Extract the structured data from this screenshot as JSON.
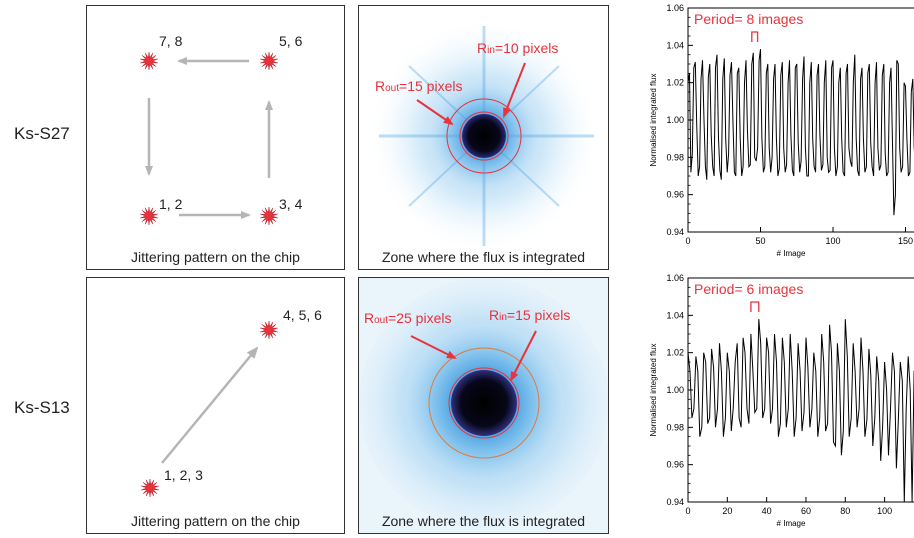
{
  "rows": [
    {
      "label": "Ks-S27",
      "jitter": {
        "caption": "Jittering pattern on the chip",
        "points": [
          "7, 8",
          "5, 6",
          "1, 2",
          "3, 4"
        ]
      },
      "zone": {
        "caption": "Zone where the flux is integrated",
        "rin": {
          "sub": "in",
          "text": "=10 pixels"
        },
        "rout": {
          "sub": "out",
          "text": "=15 pixels"
        }
      }
    },
    {
      "label": "Ks-S13",
      "jitter": {
        "caption": "Jittering pattern on the chip",
        "points": [
          "4, 5, 6",
          "1, 2, 3"
        ]
      },
      "zone": {
        "caption": "Zone where the flux is integrated",
        "rin": {
          "sub": "in",
          "text": "=15 pixels"
        },
        "rout": {
          "sub": "out",
          "text": "=25 pixels"
        }
      }
    }
  ],
  "chart_data": [
    {
      "type": "line",
      "ylabel": "Normalised integrated flux",
      "xlabel": "# Image",
      "annotation": "Period= 8 images",
      "xlim": [
        0,
        160
      ],
      "ylim": [
        0.94,
        1.06
      ],
      "xticks": [
        0,
        50,
        100,
        150
      ],
      "xtick_labels": [
        "0",
        "50",
        "100",
        "150"
      ],
      "yticks": [
        0.94,
        0.96,
        0.98,
        1.0,
        1.02,
        1.04,
        1.06
      ],
      "ytick_labels": [
        "0.94",
        "0.96",
        "0.98",
        "1.00",
        "1.02",
        "1.04",
        "1.06"
      ],
      "annotation_bracket": [
        44,
        48
      ],
      "x": [
        0,
        1,
        2,
        3,
        4,
        5,
        6,
        7,
        8,
        9,
        10,
        11,
        12,
        13,
        14,
        15,
        16,
        17,
        18,
        19,
        20,
        21,
        22,
        23,
        24,
        25,
        26,
        27,
        28,
        29,
        30,
        31,
        32,
        33,
        34,
        35,
        36,
        37,
        38,
        39,
        40,
        41,
        42,
        43,
        44,
        45,
        46,
        47,
        48,
        49,
        50,
        51,
        52,
        53,
        54,
        55,
        56,
        57,
        58,
        59,
        60,
        61,
        62,
        63,
        64,
        65,
        66,
        67,
        68,
        69,
        70,
        71,
        72,
        73,
        74,
        75,
        76,
        77,
        78,
        79,
        80,
        81,
        82,
        83,
        84,
        85,
        86,
        87,
        88,
        89,
        90,
        91,
        92,
        93,
        94,
        95,
        96,
        97,
        98,
        99,
        100,
        101,
        102,
        103,
        104,
        105,
        106,
        107,
        108,
        109,
        110,
        111,
        112,
        113,
        114,
        115,
        116,
        117,
        118,
        119,
        120,
        121,
        122,
        123,
        124,
        125,
        126,
        127,
        128,
        129,
        130,
        131,
        132,
        133,
        134,
        135,
        136,
        137,
        138,
        139,
        140,
        141,
        142,
        143,
        144,
        145,
        146,
        147,
        148,
        149,
        150,
        151,
        152,
        153,
        154,
        155,
        156,
        157,
        158,
        159
      ],
      "y": [
        1.02,
        1.025,
        0.972,
        0.982,
        1.028,
        1.031,
        0.998,
        0.97,
        0.975,
        1.022,
        1.032,
        1.0,
        0.975,
        0.968,
        1.023,
        1.03,
        0.992,
        0.975,
        0.97,
        1.028,
        1.035,
        0.99,
        0.973,
        0.968,
        1.022,
        1.033,
        0.99,
        0.972,
        0.982,
        1.024,
        1.031,
        0.998,
        0.972,
        0.97,
        1.025,
        1.028,
        0.99,
        0.97,
        0.975,
        1.02,
        1.032,
        0.995,
        0.975,
        0.976,
        1.03,
        1.036,
        0.98,
        0.978,
        0.985,
        1.032,
        1.038,
        0.99,
        0.972,
        0.975,
        1.025,
        1.03,
        0.985,
        0.972,
        0.98,
        1.022,
        1.03,
        0.99,
        0.97,
        0.974,
        1.024,
        1.031,
        0.985,
        0.972,
        0.976,
        1.02,
        1.032,
        0.992,
        0.973,
        0.97,
        1.028,
        1.03,
        0.988,
        0.972,
        0.978,
        1.022,
        1.034,
        0.985,
        0.97,
        0.97,
        1.02,
        1.031,
        0.99,
        0.975,
        0.972,
        1.024,
        1.03,
        0.992,
        0.973,
        0.976,
        1.02,
        1.032,
        0.98,
        0.972,
        0.973,
        1.028,
        1.032,
        0.985,
        0.97,
        0.975,
        1.02,
        1.028,
        0.99,
        0.972,
        0.97,
        1.025,
        1.03,
        0.985,
        0.978,
        0.975,
        1.02,
        1.035,
        0.99,
        0.973,
        0.97,
        1.022,
        1.028,
        0.99,
        0.972,
        0.975,
        1.025,
        1.03,
        0.988,
        0.975,
        0.97,
        1.02,
        1.031,
        0.985,
        0.973,
        0.976,
        1.024,
        1.03,
        0.982,
        0.97,
        0.972,
        1.02,
        1.028,
        0.99,
        0.949,
        0.96,
        1.032,
        1.03,
        0.985,
        0.972,
        0.975,
        1.02,
        1.018,
        0.99,
        0.97,
        0.972,
        1.015,
        1.022,
        0.985,
        0.975,
        1.01,
        1.018
      ]
    },
    {
      "type": "line",
      "ylabel": "Normalised integrated flux",
      "xlabel": "# Image",
      "annotation": "Period= 6 images",
      "xlim": [
        0,
        118
      ],
      "ylim": [
        0.94,
        1.06
      ],
      "xticks": [
        0,
        20,
        40,
        60,
        80,
        100
      ],
      "xtick_labels": [
        "0",
        "20",
        "40",
        "60",
        "80",
        "100"
      ],
      "yticks": [
        0.94,
        0.96,
        0.98,
        1.0,
        1.02,
        1.04,
        1.06
      ],
      "ytick_labels": [
        "0.94",
        "0.96",
        "0.98",
        "1.00",
        "1.02",
        "1.04",
        "1.06"
      ],
      "annotation_bracket": [
        32,
        36
      ],
      "x": [
        0,
        1,
        2,
        3,
        4,
        5,
        6,
        7,
        8,
        9,
        10,
        11,
        12,
        13,
        14,
        15,
        16,
        17,
        18,
        19,
        20,
        21,
        22,
        23,
        24,
        25,
        26,
        27,
        28,
        29,
        30,
        31,
        32,
        33,
        34,
        35,
        36,
        37,
        38,
        39,
        40,
        41,
        42,
        43,
        44,
        45,
        46,
        47,
        48,
        49,
        50,
        51,
        52,
        53,
        54,
        55,
        56,
        57,
        58,
        59,
        60,
        61,
        62,
        63,
        64,
        65,
        66,
        67,
        68,
        69,
        70,
        71,
        72,
        73,
        74,
        75,
        76,
        77,
        78,
        79,
        80,
        81,
        82,
        83,
        84,
        85,
        86,
        87,
        88,
        89,
        90,
        91,
        92,
        93,
        94,
        95,
        96,
        97,
        98,
        99,
        100,
        101,
        102,
        103,
        104,
        105,
        106,
        107,
        108,
        109,
        110,
        111,
        112,
        113,
        114,
        115,
        116,
        117
      ],
      "y": [
        1.02,
        1.01,
        0.985,
        0.99,
        1.018,
        1.01,
        0.975,
        0.98,
        1.02,
        1.015,
        0.982,
        0.985,
        1.022,
        1.012,
        0.98,
        0.99,
        1.025,
        1.01,
        0.975,
        0.985,
        1.02,
        1.01,
        0.978,
        0.99,
        1.015,
        1.025,
        0.985,
        0.98,
        1.028,
        1.02,
        0.99,
        0.982,
        1.03,
        1.01,
        0.988,
        0.99,
        1.038,
        1.025,
        0.985,
        0.99,
        1.028,
        1.02,
        0.982,
        0.99,
        1.03,
        1.015,
        0.975,
        0.982,
        1.028,
        1.015,
        0.98,
        0.99,
        1.03,
        1.01,
        0.975,
        0.985,
        1.025,
        1.01,
        0.978,
        0.988,
        1.028,
        1.012,
        0.98,
        0.99,
        1.02,
        1.01,
        0.975,
        0.985,
        1.03,
        1.015,
        0.978,
        0.982,
        1.035,
        1.02,
        0.972,
        0.97,
        1.025,
        1.01,
        0.965,
        0.978,
        1.038,
        1.018,
        0.975,
        0.985,
        1.025,
        1.01,
        0.98,
        0.99,
        1.028,
        1.01,
        0.975,
        0.984,
        1.022,
        1.008,
        0.97,
        0.985,
        1.018,
        1.005,
        0.962,
        0.98,
        1.015,
        1.0,
        0.965,
        0.99,
        1.02,
        1.01,
        0.958,
        0.985,
        1.015,
        1.005,
        0.94,
        0.99,
        1.018,
        1.0,
        0.94,
        1.01,
        1.012,
        0.985
      ]
    }
  ]
}
